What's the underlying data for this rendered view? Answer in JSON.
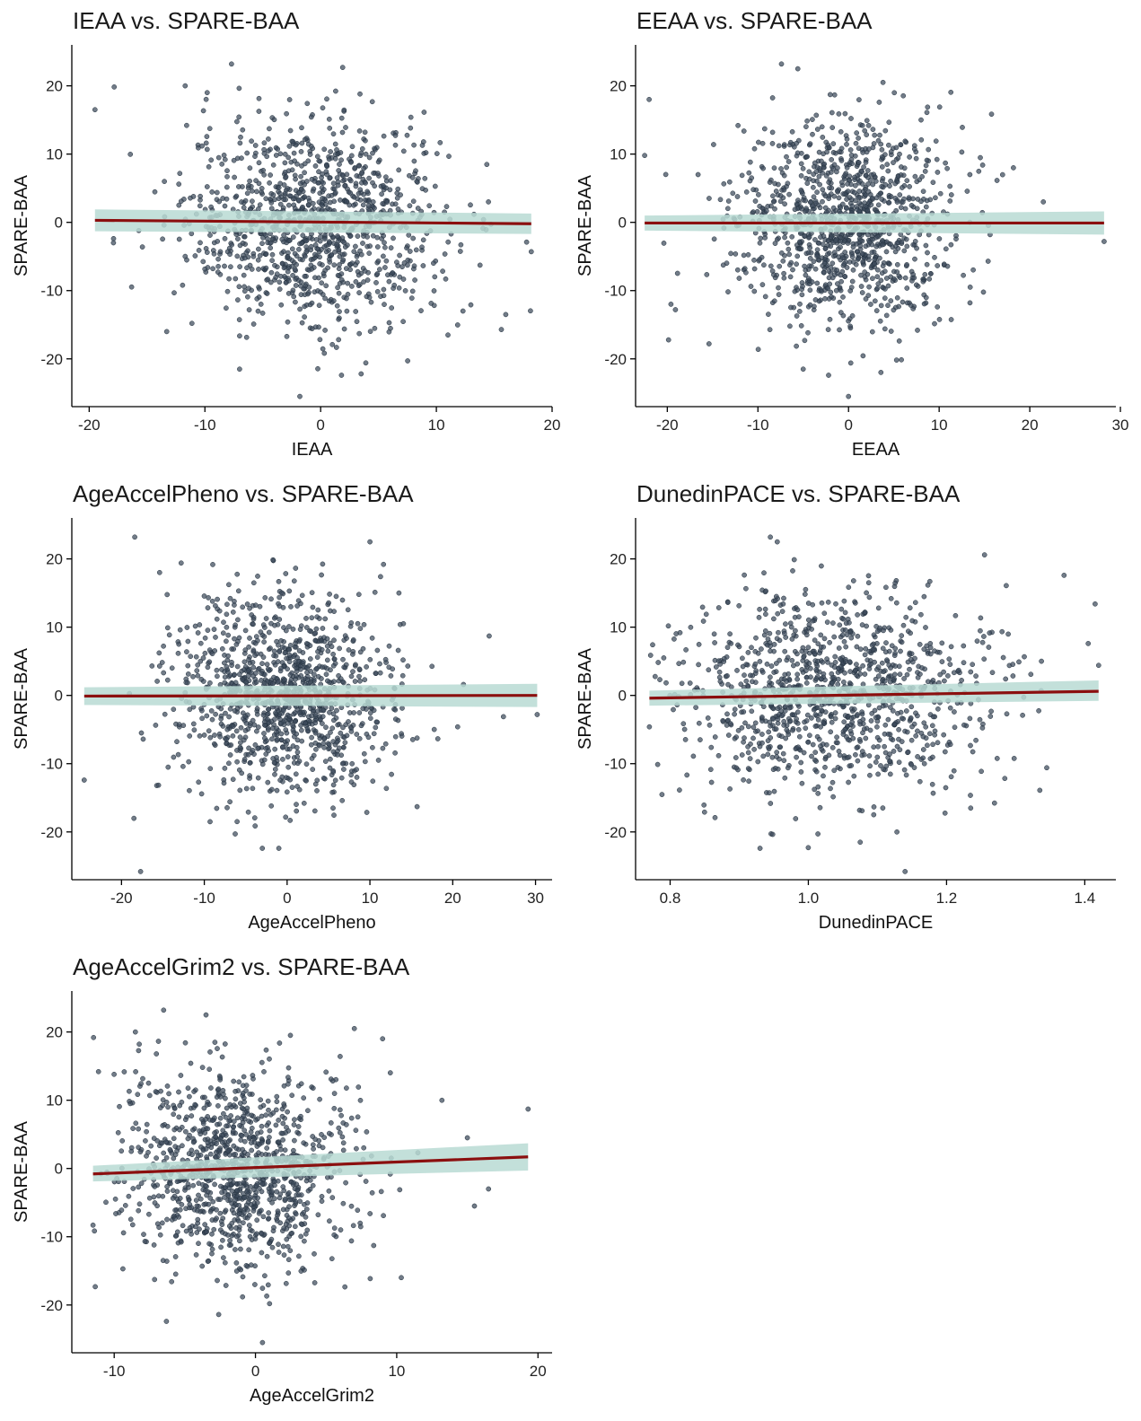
{
  "chart_data": [
    {
      "type": "scatter",
      "title": "IEAA vs. SPARE-BAA",
      "xlabel": "IEAA",
      "ylabel": "SPARE-BAA",
      "xlim": [
        -21.5,
        20
      ],
      "ylim": [
        -27,
        26
      ],
      "xticks": [
        -20,
        -10,
        0,
        10,
        20
      ],
      "yticks": [
        -20,
        -10,
        0,
        10,
        20
      ],
      "n_points": 1100,
      "x_spread": 5.5,
      "y_spread": 7.5,
      "fit": {
        "x": [
          -19.5,
          18.2
        ],
        "y": [
          0.3,
          -0.2
        ],
        "ci_lo": [
          -1.3,
          -1.7
        ],
        "ci_hi": [
          1.9,
          1.3
        ]
      },
      "outliers": [
        [
          -19.5,
          16.5
        ],
        [
          -7.7,
          23.2
        ],
        [
          1.9,
          22.7
        ],
        [
          -11.7,
          20
        ],
        [
          -9.8,
          19
        ],
        [
          3.4,
          18.8
        ],
        [
          -13.3,
          -16
        ],
        [
          -7,
          -21.5
        ],
        [
          -1.8,
          -25.5
        ],
        [
          1.8,
          -22.4
        ],
        [
          3.5,
          -22.2
        ],
        [
          12.3,
          -13
        ],
        [
          17.8,
          -2.9
        ],
        [
          18.2,
          -4.3
        ],
        [
          14.5,
          3
        ],
        [
          -17.9,
          -3
        ],
        [
          -15.4,
          -3.6
        ],
        [
          7.8,
          15.4
        ],
        [
          -13.5,
          6
        ],
        [
          11,
          -16.5
        ]
      ],
      "point_color": "#3b4a5a",
      "fit_color": "#8b0f0f",
      "band_color": "#b9dbd3"
    },
    {
      "type": "scatter",
      "title": "EEAA vs. SPARE-BAA",
      "xlabel": "EEAA",
      "ylabel": "SPARE-BAA",
      "xlim": [
        -23.5,
        29.5
      ],
      "ylim": [
        -27,
        26
      ],
      "xticks": [
        -20,
        -10,
        0,
        10,
        20,
        30
      ],
      "yticks": [
        -20,
        -10,
        0,
        10,
        20
      ],
      "n_points": 1100,
      "x_spread": 6,
      "y_spread": 7.5,
      "fit": {
        "x": [
          -22.5,
          28.2
        ],
        "y": [
          -0.1,
          -0.1
        ],
        "ci_lo": [
          -1.2,
          -1.8
        ],
        "ci_hi": [
          1,
          1.6
        ]
      },
      "outliers": [
        [
          -22.5,
          9.8
        ],
        [
          -22,
          18
        ],
        [
          -7.4,
          23.2
        ],
        [
          -5.6,
          22.5
        ],
        [
          3.8,
          20.5
        ],
        [
          -19.6,
          -12
        ],
        [
          -19.1,
          -12.8
        ],
        [
          -5,
          -21.5
        ],
        [
          -2.2,
          -22.4
        ],
        [
          0,
          -25.5
        ],
        [
          18.2,
          8
        ],
        [
          21.5,
          3
        ],
        [
          28.2,
          -2.8
        ],
        [
          13.4,
          -11.8
        ],
        [
          15.4,
          -5.7
        ],
        [
          12.5,
          10.3
        ],
        [
          8,
          15
        ],
        [
          -15.4,
          -17.8
        ]
      ],
      "point_color": "#3b4a5a",
      "fit_color": "#8b0f0f",
      "band_color": "#b9dbd3"
    },
    {
      "type": "scatter",
      "title": "AgeAccelPheno vs. SPARE-BAA",
      "xlabel": "AgeAccelPheno",
      "ylabel": "SPARE-BAA",
      "xlim": [
        -26,
        32
      ],
      "ylim": [
        -27,
        26
      ],
      "xticks": [
        -20,
        -10,
        0,
        10,
        20,
        30
      ],
      "yticks": [
        -20,
        -10,
        0,
        10,
        20
      ],
      "n_points": 1100,
      "x_spread": 6.5,
      "y_spread": 7.5,
      "fit": {
        "x": [
          -24.5,
          30.2
        ],
        "y": [
          -0.1,
          0
        ],
        "ci_lo": [
          -1.4,
          -1.7
        ],
        "ci_hi": [
          1.2,
          1.7
        ]
      },
      "outliers": [
        [
          -18.4,
          23.2
        ],
        [
          -15.4,
          18
        ],
        [
          -12.8,
          19.4
        ],
        [
          10,
          22.5
        ],
        [
          -24.5,
          -12.4
        ],
        [
          -18.5,
          -18
        ],
        [
          -17.7,
          -25.8
        ],
        [
          -9.3,
          -18.5
        ],
        [
          -3,
          -22.4
        ],
        [
          -1,
          -22.4
        ],
        [
          24.4,
          8.7
        ],
        [
          30.2,
          -2.8
        ],
        [
          21.3,
          1.6
        ],
        [
          15.7,
          -16.3
        ],
        [
          13.5,
          15
        ],
        [
          20.6,
          -4.6
        ]
      ],
      "point_color": "#3b4a5a",
      "fit_color": "#8b0f0f",
      "band_color": "#b9dbd3"
    },
    {
      "type": "scatter",
      "title": "DunedinPACE vs. SPARE-BAA",
      "xlabel": "DunedinPACE",
      "ylabel": "SPARE-BAA",
      "xlim": [
        0.75,
        1.445
      ],
      "ylim": [
        -27,
        26
      ],
      "xticks": [
        0.8,
        1.0,
        1.2,
        1.4
      ],
      "xtick_labels": [
        "0.8",
        "1.0",
        "1.2",
        "1.4"
      ],
      "yticks": [
        -20,
        -10,
        0,
        10,
        20
      ],
      "n_points": 1100,
      "x_spread": 0.11,
      "y_spread": 7.5,
      "fit": {
        "x": [
          0.77,
          1.42
        ],
        "y": [
          -0.4,
          0.6
        ],
        "ci_lo": [
          -1.5,
          -0.8
        ],
        "ci_hi": [
          0.7,
          2.2
        ]
      },
      "outliers": [
        [
          0.945,
          23.2
        ],
        [
          0.955,
          22.5
        ],
        [
          1.255,
          20.6
        ],
        [
          1.37,
          17.6
        ],
        [
          1.415,
          13.4
        ],
        [
          1.405,
          7.6
        ],
        [
          1.42,
          4.4
        ],
        [
          0.77,
          -4.6
        ],
        [
          0.93,
          -22.4
        ],
        [
          1.0,
          -22.3
        ],
        [
          1.14,
          -25.8
        ],
        [
          1.075,
          -21.5
        ],
        [
          1.235,
          -16.5
        ],
        [
          1.335,
          -13.9
        ],
        [
          1.345,
          -10.6
        ],
        [
          0.865,
          -17.9
        ]
      ],
      "point_color": "#3b4a5a",
      "fit_color": "#8b0f0f",
      "band_color": "#b9dbd3"
    },
    {
      "type": "scatter",
      "title": "AgeAccelGrim2 vs. SPARE-BAA",
      "xlabel": "AgeAccelGrim2",
      "ylabel": "SPARE-BAA",
      "xlim": [
        -13,
        21
      ],
      "ylim": [
        -27,
        26
      ],
      "xticks": [
        -10,
        0,
        10,
        20
      ],
      "yticks": [
        -20,
        -10,
        0,
        10,
        20
      ],
      "n_points": 1100,
      "x_spread": 4,
      "y_spread": 7.5,
      "fit": {
        "x": [
          -11.5,
          19.3
        ],
        "y": [
          -0.8,
          1.7
        ],
        "ci_lo": [
          -1.9,
          -0.3
        ],
        "ci_hi": [
          0.4,
          3.7
        ]
      },
      "outliers": [
        [
          -6.5,
          23.2
        ],
        [
          -8.5,
          20
        ],
        [
          -3.5,
          22.5
        ],
        [
          7,
          20.5
        ],
        [
          9,
          19
        ],
        [
          13.2,
          10
        ],
        [
          19.3,
          8.7
        ],
        [
          15,
          4.5
        ],
        [
          -6.3,
          -22.4
        ],
        [
          -2.6,
          -21.4
        ],
        [
          0.5,
          -25.5
        ],
        [
          1,
          -19.8
        ],
        [
          15.5,
          -5.5
        ],
        [
          16.5,
          -3
        ],
        [
          -11.5,
          -8.3
        ],
        [
          11.5,
          2.3
        ]
      ],
      "point_color": "#3b4a5a",
      "fit_color": "#8b0f0f",
      "band_color": "#b9dbd3"
    }
  ]
}
